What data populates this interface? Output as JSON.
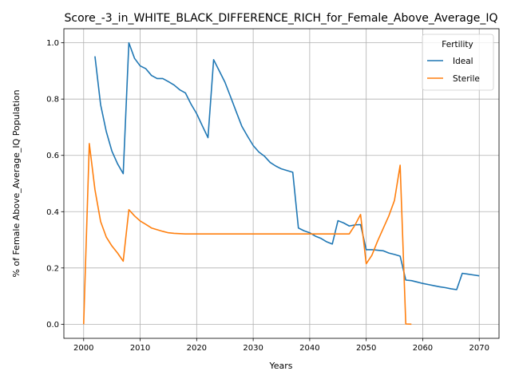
{
  "chart_data": {
    "type": "line",
    "title": "Score_-3_in_WHITE_BLACK_DIFFERENCE_RICH_for_Female_Above_Average_IQ",
    "xlabel": "Years",
    "ylabel": "% of Female Above_Average_IQ Population",
    "xlim": [
      1996.5,
      2073.5
    ],
    "ylim": [
      -0.05,
      1.05
    ],
    "xticks": [
      2000,
      2010,
      2020,
      2030,
      2040,
      2050,
      2060,
      2070
    ],
    "yticks": [
      0.0,
      0.2,
      0.4,
      0.6,
      0.8,
      1.0
    ],
    "xtick_labels": [
      "2000",
      "2010",
      "2020",
      "2030",
      "2040",
      "2050",
      "2060",
      "2070"
    ],
    "ytick_labels": [
      "0.0",
      "0.2",
      "0.4",
      "0.6",
      "0.8",
      "1.0"
    ],
    "grid": true,
    "legend": {
      "title": "Fertility",
      "placement": "top-right"
    },
    "series": [
      {
        "name": "Ideal",
        "color": "#1f77b4",
        "x": [
          2002,
          2003,
          2004,
          2005,
          2006,
          2007,
          2008,
          2009,
          2010,
          2011,
          2012,
          2013,
          2014,
          2015,
          2016,
          2017,
          2018,
          2019,
          2020,
          2021,
          2022,
          2023,
          2024,
          2025,
          2026,
          2027,
          2028,
          2029,
          2030,
          2031,
          2032,
          2033,
          2034,
          2035,
          2036,
          2037,
          2038,
          2039,
          2040,
          2041,
          2042,
          2043,
          2044,
          2045,
          2046,
          2047,
          2048,
          2049,
          2050,
          2051,
          2052,
          2053,
          2054,
          2055,
          2056,
          2057,
          2058,
          2059,
          2060,
          2061,
          2062,
          2063,
          2064,
          2065,
          2066,
          2067,
          2068,
          2069,
          2070
        ],
        "y": [
          0.952,
          0.78,
          0.685,
          0.615,
          0.57,
          0.535,
          1.0,
          0.945,
          0.918,
          0.908,
          0.884,
          0.873,
          0.873,
          0.862,
          0.85,
          0.833,
          0.822,
          0.782,
          0.748,
          0.705,
          0.663,
          0.94,
          0.9,
          0.86,
          0.808,
          0.755,
          0.703,
          0.668,
          0.635,
          0.612,
          0.597,
          0.575,
          0.562,
          0.552,
          0.546,
          0.54,
          0.342,
          0.332,
          0.325,
          0.313,
          0.305,
          0.293,
          0.285,
          0.368,
          0.36,
          0.349,
          0.353,
          0.354,
          0.265,
          0.265,
          0.263,
          0.261,
          0.253,
          0.248,
          0.242,
          0.157,
          0.155,
          0.15,
          0.145,
          0.141,
          0.137,
          0.133,
          0.13,
          0.126,
          0.123,
          0.181,
          0.178,
          0.175,
          0.172
        ]
      },
      {
        "name": "Sterile",
        "color": "#ff7f0e",
        "x": [
          2000,
          2001,
          2002,
          2003,
          2004,
          2005,
          2006,
          2007,
          2008,
          2009,
          2010,
          2011,
          2012,
          2013,
          2014,
          2015,
          2016,
          2017,
          2018,
          2019,
          2020,
          2021,
          2022,
          2023,
          2024,
          2025,
          2026,
          2027,
          2028,
          2029,
          2030,
          2031,
          2032,
          2033,
          2034,
          2035,
          2036,
          2037,
          2038,
          2039,
          2040,
          2041,
          2042,
          2043,
          2044,
          2045,
          2046,
          2047,
          2048,
          2049,
          2050,
          2051,
          2052,
          2053,
          2054,
          2055,
          2056,
          2057,
          2058
        ],
        "y": [
          0.0,
          0.642,
          0.478,
          0.365,
          0.31,
          0.278,
          0.253,
          0.224,
          0.407,
          0.385,
          0.367,
          0.355,
          0.342,
          0.336,
          0.33,
          0.325,
          0.323,
          0.322,
          0.321,
          0.321,
          0.321,
          0.321,
          0.321,
          0.321,
          0.321,
          0.321,
          0.321,
          0.321,
          0.321,
          0.321,
          0.321,
          0.321,
          0.321,
          0.321,
          0.321,
          0.321,
          0.321,
          0.321,
          0.321,
          0.321,
          0.321,
          0.321,
          0.321,
          0.321,
          0.321,
          0.321,
          0.321,
          0.321,
          0.352,
          0.39,
          0.215,
          0.245,
          0.295,
          0.34,
          0.385,
          0.44,
          0.565,
          0.001,
          0.0
        ]
      }
    ]
  }
}
